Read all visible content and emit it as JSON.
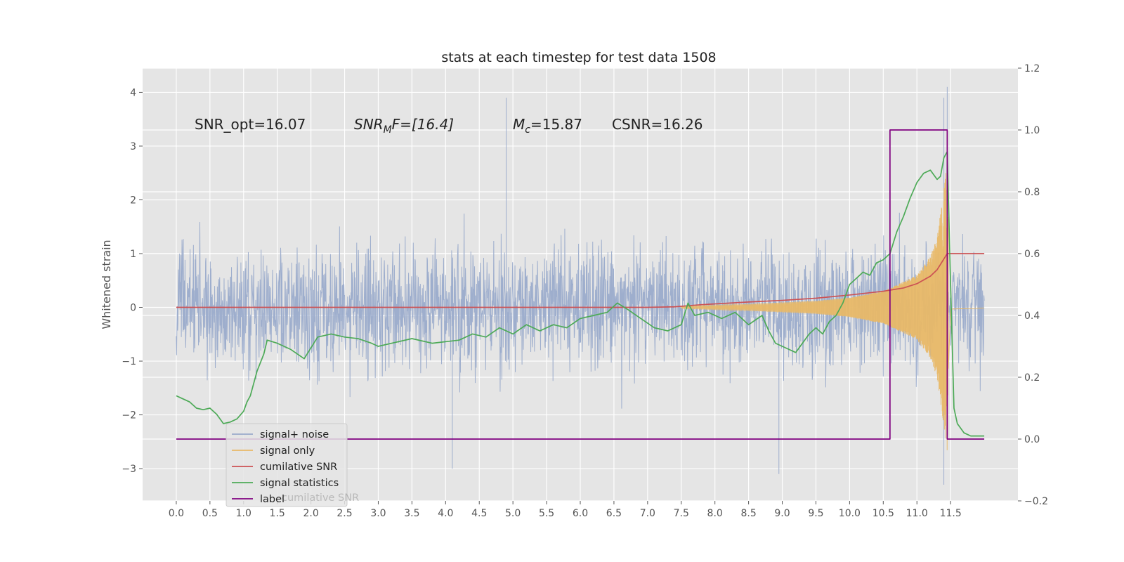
{
  "chart_data": {
    "type": "line",
    "title": "stats at each timestep for test data 1508",
    "ylabel": "Whitened strain",
    "xlim": [
      -0.5,
      12.5
    ],
    "ylim": [
      -3.6,
      4.45
    ],
    "y2lim": [
      -0.2,
      1.2
    ],
    "xticks": [
      "0.0",
      "0.5",
      "1.0",
      "1.5",
      "2.0",
      "2.5",
      "3.0",
      "3.5",
      "4.0",
      "4.5",
      "5.0",
      "5.5",
      "6.0",
      "6.5",
      "7.0",
      "7.5",
      "8.0",
      "8.5",
      "9.0",
      "9.5",
      "10.0",
      "10.5",
      "11.0",
      "11.5"
    ],
    "yticks": [
      "4",
      "3",
      "2",
      "1",
      "0",
      "−1",
      "−2",
      "−3"
    ],
    "y2ticks": [
      "1.2",
      "1.0",
      "0.8",
      "0.6",
      "0.4",
      "0.2",
      "0.0",
      "−0.2"
    ],
    "grid": true,
    "legend_position": "lower-left",
    "annotations": {
      "snr_opt": "SNR_opt=16.07",
      "snr_mf_base": "SNR",
      "snr_mf_sub": "M",
      "snr_mf_rest": "F=[16.4]",
      "mc_base": "M",
      "mc_sub": "c",
      "mc_rest": "=15.87",
      "csnr": "CSNR=16.26"
    },
    "legend_hidden_entry": "cumilative SNR",
    "series": [
      {
        "name": "signal+ noise",
        "axis": "left",
        "color": "#9aabcb",
        "style": "noise",
        "x_range": [
          0.0,
          12.0
        ],
        "typical_amplitude": [
          -1.4,
          1.5
        ],
        "peak_values": [
          [
            4.9,
            3.9
          ],
          [
            11.4,
            3.9
          ],
          [
            11.45,
            4.1
          ],
          [
            11.4,
            -3.3
          ],
          [
            4.1,
            -3.0
          ],
          [
            8.95,
            -3.1
          ]
        ]
      },
      {
        "name": "signal only",
        "axis": "left",
        "color": "#e8b867",
        "style": "chirp",
        "x_range": [
          7.5,
          12.0
        ],
        "merger_time": 11.45,
        "peak_amplitude": 2.7,
        "envelope": [
          [
            7.5,
            0.02
          ],
          [
            8.5,
            0.06
          ],
          [
            9.5,
            0.12
          ],
          [
            10.0,
            0.18
          ],
          [
            10.5,
            0.3
          ],
          [
            11.0,
            0.6
          ],
          [
            11.2,
            0.95
          ],
          [
            11.3,
            1.3
          ],
          [
            11.4,
            2.2
          ],
          [
            11.45,
            2.7
          ],
          [
            11.5,
            0.05
          ],
          [
            12.0,
            0.02
          ]
        ]
      },
      {
        "name": "cumilative SNR",
        "axis": "left",
        "color": "#cc5254",
        "points": [
          [
            0.0,
            0.0
          ],
          [
            7.0,
            0.0
          ],
          [
            7.4,
            0.01
          ],
          [
            7.8,
            0.05
          ],
          [
            8.5,
            0.1
          ],
          [
            9.0,
            0.13
          ],
          [
            9.5,
            0.17
          ],
          [
            10.0,
            0.23
          ],
          [
            10.5,
            0.3
          ],
          [
            10.8,
            0.36
          ],
          [
            11.0,
            0.44
          ],
          [
            11.2,
            0.58
          ],
          [
            11.3,
            0.7
          ],
          [
            11.4,
            0.9
          ],
          [
            11.45,
            1.0
          ],
          [
            12.0,
            1.0
          ]
        ]
      },
      {
        "name": "signal statistics",
        "axis": "right",
        "color": "#4daa57",
        "points": [
          [
            0.0,
            0.14
          ],
          [
            0.1,
            0.13
          ],
          [
            0.2,
            0.12
          ],
          [
            0.3,
            0.1
          ],
          [
            0.4,
            0.095
          ],
          [
            0.5,
            0.1
          ],
          [
            0.6,
            0.08
          ],
          [
            0.65,
            0.065
          ],
          [
            0.7,
            0.05
          ],
          [
            0.8,
            0.055
          ],
          [
            0.9,
            0.065
          ],
          [
            1.0,
            0.09
          ],
          [
            1.05,
            0.12
          ],
          [
            1.1,
            0.14
          ],
          [
            1.2,
            0.22
          ],
          [
            1.3,
            0.275
          ],
          [
            1.35,
            0.32
          ],
          [
            1.5,
            0.31
          ],
          [
            1.7,
            0.29
          ],
          [
            1.9,
            0.26
          ],
          [
            2.1,
            0.33
          ],
          [
            2.3,
            0.34
          ],
          [
            2.5,
            0.33
          ],
          [
            2.7,
            0.325
          ],
          [
            2.9,
            0.31
          ],
          [
            3.0,
            0.3
          ],
          [
            3.2,
            0.31
          ],
          [
            3.5,
            0.325
          ],
          [
            3.8,
            0.31
          ],
          [
            4.0,
            0.315
          ],
          [
            4.2,
            0.32
          ],
          [
            4.4,
            0.34
          ],
          [
            4.6,
            0.33
          ],
          [
            4.8,
            0.36
          ],
          [
            5.0,
            0.34
          ],
          [
            5.2,
            0.37
          ],
          [
            5.4,
            0.35
          ],
          [
            5.6,
            0.37
          ],
          [
            5.8,
            0.36
          ],
          [
            6.0,
            0.39
          ],
          [
            6.2,
            0.4
          ],
          [
            6.4,
            0.41
          ],
          [
            6.55,
            0.44
          ],
          [
            6.7,
            0.42
          ],
          [
            6.9,
            0.39
          ],
          [
            7.1,
            0.36
          ],
          [
            7.3,
            0.35
          ],
          [
            7.5,
            0.37
          ],
          [
            7.6,
            0.44
          ],
          [
            7.7,
            0.4
          ],
          [
            7.9,
            0.41
          ],
          [
            8.1,
            0.39
          ],
          [
            8.3,
            0.41
          ],
          [
            8.5,
            0.37
          ],
          [
            8.7,
            0.4
          ],
          [
            8.8,
            0.35
          ],
          [
            8.9,
            0.31
          ],
          [
            9.1,
            0.29
          ],
          [
            9.2,
            0.28
          ],
          [
            9.4,
            0.34
          ],
          [
            9.5,
            0.36
          ],
          [
            9.6,
            0.34
          ],
          [
            9.7,
            0.38
          ],
          [
            9.8,
            0.4
          ],
          [
            9.9,
            0.44
          ],
          [
            10.0,
            0.5
          ],
          [
            10.1,
            0.52
          ],
          [
            10.2,
            0.54
          ],
          [
            10.3,
            0.53
          ],
          [
            10.4,
            0.57
          ],
          [
            10.5,
            0.58
          ],
          [
            10.6,
            0.6
          ],
          [
            10.7,
            0.67
          ],
          [
            10.8,
            0.72
          ],
          [
            10.9,
            0.78
          ],
          [
            11.0,
            0.83
          ],
          [
            11.1,
            0.86
          ],
          [
            11.2,
            0.87
          ],
          [
            11.3,
            0.84
          ],
          [
            11.35,
            0.85
          ],
          [
            11.4,
            0.91
          ],
          [
            11.45,
            0.93
          ],
          [
            11.5,
            0.5
          ],
          [
            11.55,
            0.1
          ],
          [
            11.6,
            0.05
          ],
          [
            11.7,
            0.02
          ],
          [
            11.8,
            0.01
          ],
          [
            12.0,
            0.01
          ]
        ]
      },
      {
        "name": "label",
        "axis": "right",
        "color": "#800080",
        "points": [
          [
            0.0,
            0.0
          ],
          [
            10.6,
            0.0
          ],
          [
            10.6,
            1.0
          ],
          [
            11.45,
            1.0
          ],
          [
            11.45,
            0.0
          ],
          [
            12.0,
            0.0
          ]
        ]
      }
    ]
  }
}
